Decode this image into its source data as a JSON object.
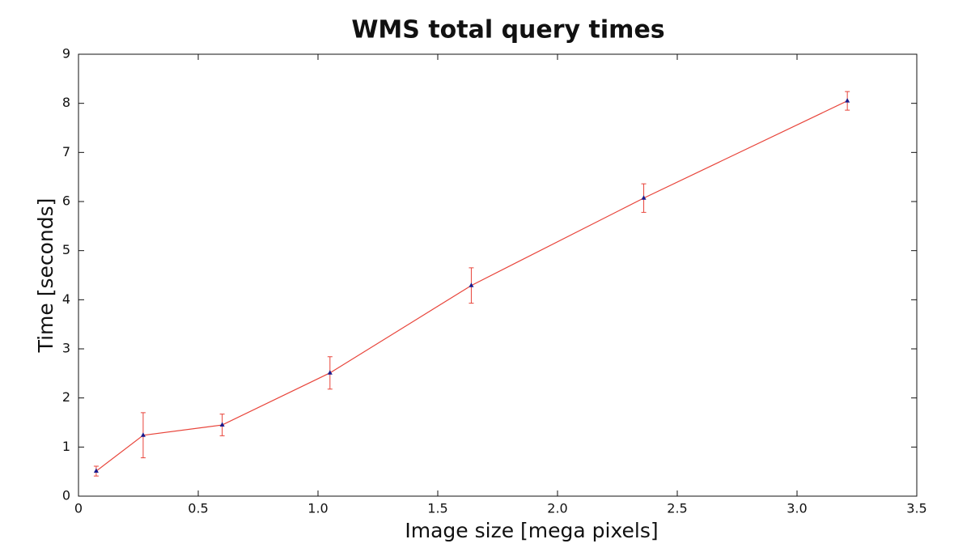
{
  "chart_data": {
    "type": "line",
    "title": "WMS total query times",
    "xlabel": "Image size [mega pixels]",
    "ylabel": "Time [seconds]",
    "x": [
      0.074,
      0.27,
      0.6,
      1.05,
      1.64,
      2.36,
      3.21
    ],
    "series": [
      {
        "color": "#e8443a",
        "marker_color": "#1a1a8c",
        "values": [
          0.51,
          1.24,
          1.45,
          2.51,
          4.29,
          6.07,
          8.05
        ],
        "errors": [
          0.1,
          0.46,
          0.22,
          0.33,
          0.36,
          0.29,
          0.19
        ]
      }
    ],
    "xlim": [
      0,
      3.5
    ],
    "xticks": [
      0,
      0.5,
      {
        "value": 1,
        "label": "1.0"
      },
      1.5,
      {
        "value": 2,
        "label": "2.0"
      },
      2.5,
      {
        "value": 3,
        "label": "3.0"
      },
      3.5
    ],
    "ylim": [
      0,
      9
    ],
    "yticks": [
      0,
      1,
      2,
      3,
      4,
      5,
      6,
      7,
      8,
      9
    ],
    "grid": false
  }
}
